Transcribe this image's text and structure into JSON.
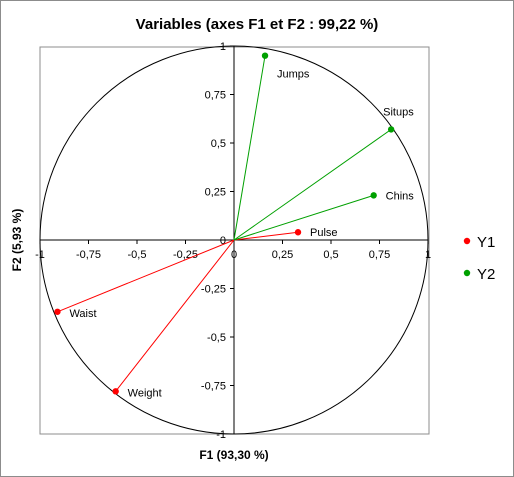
{
  "chart_data": {
    "type": "scatter",
    "title": "Variables (axes F1 et F2 : 99,22 %)",
    "xlabel": "F1 (93,30 %)",
    "ylabel": "F2 (5,93 %)",
    "xlim": [
      -1,
      1
    ],
    "ylim": [
      -1,
      1
    ],
    "xticks": [
      "-1",
      "-0,75",
      "-0,5",
      "-0,25",
      "0",
      "0,25",
      "0,5",
      "0,75",
      "1"
    ],
    "yticks": [
      "1",
      "0,75",
      "0,5",
      "0,25",
      "0",
      "-0,25",
      "-0,5",
      "-0,75",
      "-1"
    ],
    "grid": false,
    "unit_circle": true,
    "legend_position": "right",
    "series": [
      {
        "name": "Y1",
        "color": "#ff0000",
        "points": [
          {
            "label": "Pulse",
            "x": 0.33,
            "y": 0.04
          },
          {
            "label": "Waist",
            "x": -0.91,
            "y": -0.37
          },
          {
            "label": "Weight",
            "x": -0.61,
            "y": -0.78
          }
        ]
      },
      {
        "name": "Y2",
        "color": "#00a000",
        "points": [
          {
            "label": "Jumps",
            "x": 0.16,
            "y": 0.95
          },
          {
            "label": "Situps",
            "x": 0.81,
            "y": 0.57
          },
          {
            "label": "Chins",
            "x": 0.72,
            "y": 0.23
          }
        ]
      }
    ]
  }
}
